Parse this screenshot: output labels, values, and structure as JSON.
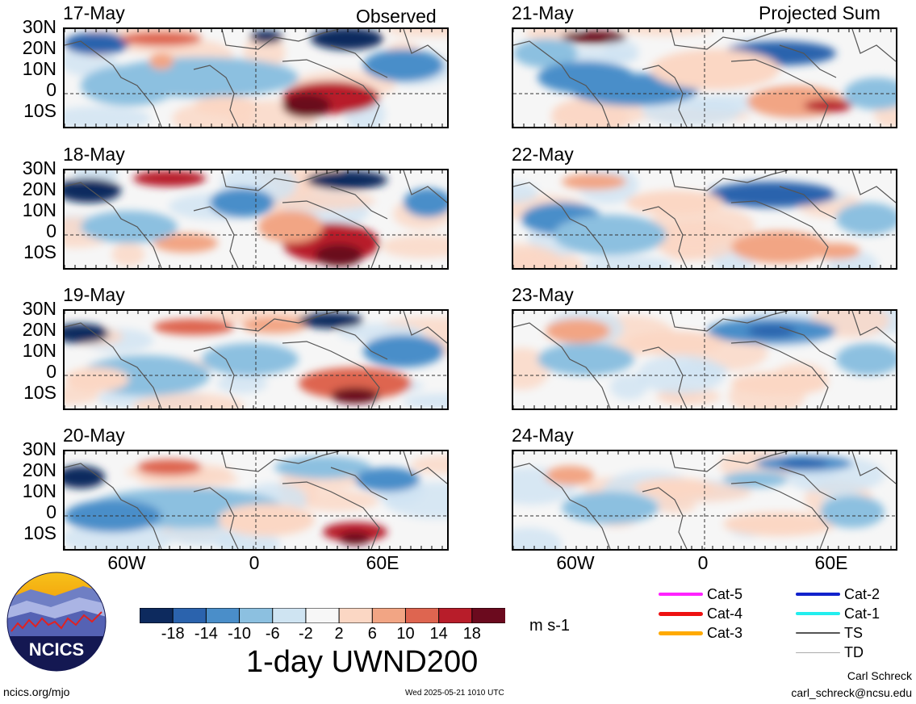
{
  "headers": {
    "left": "Observed",
    "right": "Projected Sum"
  },
  "panels": {
    "observed": [
      "17-May",
      "18-May",
      "19-May",
      "20-May"
    ],
    "projected": [
      "21-May",
      "22-May",
      "23-May",
      "24-May"
    ]
  },
  "lat_labels": [
    "30N",
    "20N",
    "10N",
    "0",
    "10S"
  ],
  "lon_labels": [
    "60W",
    "0",
    "60E"
  ],
  "colorbar": {
    "ticks": [
      "-18",
      "-14",
      "-10",
      "-6",
      "-2",
      "2",
      "6",
      "10",
      "14",
      "18"
    ],
    "unit": "m s-1",
    "colors": [
      "#0d2a5e",
      "#2b63ad",
      "#4a8ec9",
      "#8cc0e0",
      "#cfe4f2",
      "#f7f7f7",
      "#fbd7c4",
      "#f2a584",
      "#de6550",
      "#b81d2a",
      "#6b0a1e"
    ]
  },
  "legend": {
    "items": [
      {
        "label": "Cat-5",
        "color": "#ff22ff",
        "width": 4
      },
      {
        "label": "Cat-4",
        "color": "#ee1111",
        "width": 5
      },
      {
        "label": "Cat-3",
        "color": "#ffaa00",
        "width": 5
      },
      {
        "label": "Cat-2",
        "color": "#1122cc",
        "width": 4
      },
      {
        "label": "Cat-1",
        "color": "#22eeee",
        "width": 4
      },
      {
        "label": "TS",
        "color": "#555555",
        "width": 2
      },
      {
        "label": "TD",
        "color": "#aaaaaa",
        "width": 1
      }
    ]
  },
  "title": "1-day UWND200",
  "logo": {
    "text": "NCICS"
  },
  "footer": {
    "url": "ncics.org/mjo",
    "timestamp": "Wed 2025-05-21 1010 UTC",
    "author": "Carl Schreck",
    "email": "carl_schreck@ncsu.edu"
  }
}
